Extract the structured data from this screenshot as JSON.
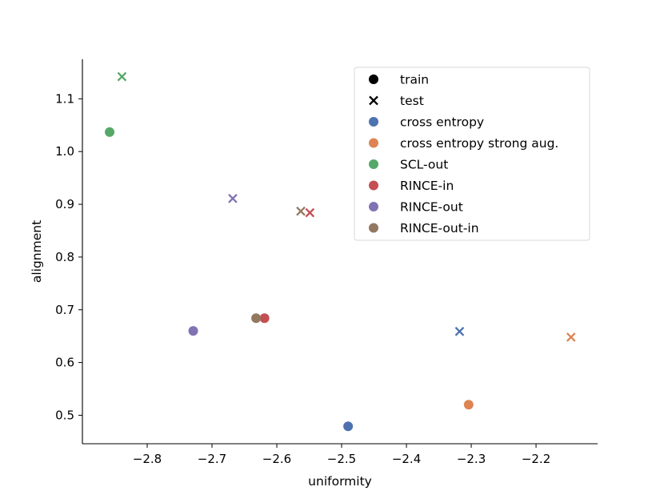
{
  "chart_data": {
    "type": "scatter",
    "title": "",
    "xlabel": "uniformity",
    "ylabel": "alignment",
    "xlim": [
      -2.9,
      -2.105
    ],
    "ylim": [
      0.446,
      1.175
    ],
    "xticks": [
      -2.8,
      -2.7,
      -2.6,
      -2.5,
      -2.4,
      -2.3,
      -2.2
    ],
    "yticks": [
      0.5,
      0.6,
      0.7,
      0.8,
      0.9,
      1.0,
      1.1
    ],
    "xtick_labels": [
      "−2.8",
      "−2.7",
      "−2.6",
      "−2.5",
      "−2.4",
      "−2.3",
      "−2.2"
    ],
    "ytick_labels": [
      "0.5",
      "0.6",
      "0.7",
      "0.8",
      "0.9",
      "1.0",
      "1.1"
    ],
    "grid": false,
    "legend_position": "top-right",
    "marker_legend": [
      {
        "label": "train",
        "marker": "circle"
      },
      {
        "label": "test",
        "marker": "x"
      }
    ],
    "series": [
      {
        "name": "cross entropy",
        "color": "#4c72b0",
        "train": {
          "x": -2.49,
          "y": 0.479
        },
        "test": {
          "x": -2.318,
          "y": 0.659
        }
      },
      {
        "name": "cross entropy strong aug.",
        "color": "#dd8452",
        "train": {
          "x": -2.304,
          "y": 0.52
        },
        "test": {
          "x": -2.146,
          "y": 0.648
        }
      },
      {
        "name": "SCL-out",
        "color": "#55a868",
        "train": {
          "x": -2.858,
          "y": 1.037
        },
        "test": {
          "x": -2.839,
          "y": 1.142
        }
      },
      {
        "name": "RINCE-in",
        "color": "#c44e52",
        "train": {
          "x": -2.619,
          "y": 0.684
        },
        "test": {
          "x": -2.549,
          "y": 0.884
        }
      },
      {
        "name": "RINCE-out",
        "color": "#8172b3",
        "train": {
          "x": -2.729,
          "y": 0.66
        },
        "test": {
          "x": -2.668,
          "y": 0.911
        }
      },
      {
        "name": "RINCE-out-in",
        "color": "#937860",
        "train": {
          "x": -2.632,
          "y": 0.684
        },
        "test": {
          "x": -2.563,
          "y": 0.887
        }
      }
    ]
  }
}
